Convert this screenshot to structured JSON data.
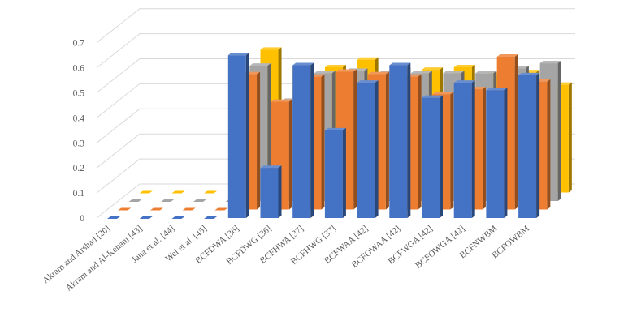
{
  "chart_data": {
    "type": "bar",
    "style": "3d-clustered",
    "categories": [
      "Akram and Arshad [20]",
      "Akram and Al-Kenani [43]",
      "Jana et al. [44]",
      "Wei et al. [45]",
      "BCFDWA [36]",
      "BCFDWG [36]",
      "BCFHWA [37]",
      "BCFHWG [37]",
      "BCFWAA [42]",
      "BCFOWAA [42]",
      "BCFWGA [42]",
      "BCFOWGA [42]",
      "BCFNWBM",
      "BCFOWBM"
    ],
    "series": [
      {
        "color": "#4472C4",
        "values": [
          0,
          0,
          0,
          0,
          0.65,
          0.2,
          0.61,
          0.35,
          0.54,
          0.61,
          0.48,
          0.54,
          0.51,
          0.57
        ]
      },
      {
        "color": "#ED7D31",
        "values": [
          0,
          0,
          0,
          0,
          0.54,
          0.43,
          0.53,
          0.55,
          0.54,
          0.53,
          0.46,
          0.48,
          0.61,
          0.51
        ]
      },
      {
        "color": "#A5A5A5",
        "values": [
          0,
          0,
          0,
          0,
          0.54,
          0.4,
          0.51,
          0.52,
          0.51,
          0.51,
          0.51,
          0.51,
          0.53,
          0.55
        ]
      },
      {
        "color": "#FFC000",
        "values": [
          0,
          0,
          0,
          0,
          0.57,
          0.5,
          0.5,
          0.53,
          0.49,
          0.49,
          0.5,
          0.47,
          0.48,
          0.43
        ]
      }
    ],
    "yticks": [
      "0",
      "0.1",
      "0.2",
      "0.3",
      "0.4",
      "0.5",
      "0.6",
      "0.7"
    ],
    "ylim": [
      0,
      0.7
    ],
    "grid": true,
    "legend": "none"
  }
}
